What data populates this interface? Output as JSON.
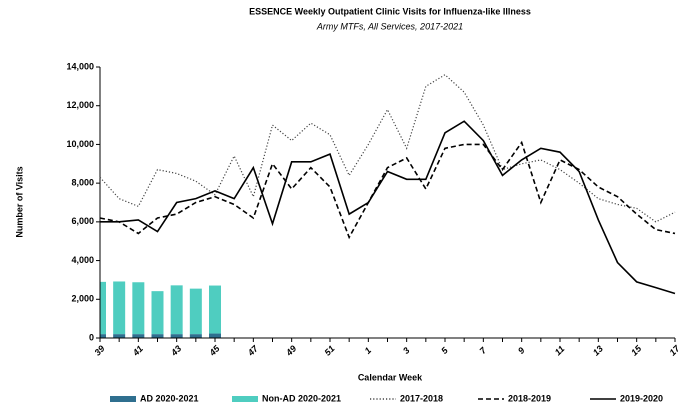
{
  "chart_data": {
    "type": "line",
    "title": "ESSENCE Weekly Outpatient Clinic Visits for Influenza-like Illness",
    "subtitle": "Army MTFs, All Services, 2017-2021",
    "x_label": "Calendar Week",
    "y_label": "Number of Visits",
    "categories": [
      "39",
      null,
      "41",
      null,
      "43",
      null,
      "45",
      null,
      "47",
      null,
      "49",
      null,
      "51",
      null,
      "1",
      null,
      "3",
      null,
      "5",
      null,
      "7",
      null,
      "9",
      null,
      "11",
      null,
      "13",
      null,
      "15",
      null,
      "17"
    ],
    "ylim": [
      0,
      14000
    ],
    "yticks": [
      0,
      {
        "value": 2000,
        "label": "2,000"
      },
      {
        "value": 4000,
        "label": "4,000"
      },
      {
        "value": 6000,
        "label": "6,000"
      },
      {
        "value": 8000,
        "label": "8,000"
      },
      {
        "value": 10000,
        "label": "10,000"
      },
      {
        "value": 12000,
        "label": "12,000"
      },
      {
        "value": 14000,
        "label": "14,000"
      }
    ],
    "legend": "bottom",
    "series": [
      {
        "name": "AD 2020-2021",
        "type": "bar",
        "stack": "2020-2021",
        "color": "#2f6f8f",
        "values": [
          200,
          200,
          200,
          200,
          200,
          200,
          230,
          null,
          null,
          null,
          null,
          null,
          null,
          null,
          null,
          null,
          null,
          null,
          null,
          null,
          null,
          null,
          null,
          null,
          null,
          null,
          null,
          null,
          null,
          null,
          null
        ]
      },
      {
        "name": "Non-AD 2020-2021",
        "type": "bar",
        "stack": "2020-2021",
        "color": "#4fcdc0",
        "values": [
          2700,
          2720,
          2680,
          2220,
          2520,
          2350,
          2480,
          null,
          null,
          null,
          null,
          null,
          null,
          null,
          null,
          null,
          null,
          null,
          null,
          null,
          null,
          null,
          null,
          null,
          null,
          null,
          null,
          null,
          null,
          null,
          null
        ]
      },
      {
        "name": "2017-2018",
        "type": "line",
        "line_style": "dotted",
        "color": "#444444",
        "values": [
          8300,
          7200,
          6800,
          8700,
          8500,
          8100,
          7400,
          9400,
          7300,
          11000,
          10200,
          11100,
          10500,
          8400,
          10000,
          11800,
          9800,
          13000,
          13600,
          12700,
          11000,
          8700,
          9000,
          9200,
          8700,
          8000,
          7200,
          6900,
          6700,
          6000,
          6500
        ]
      },
      {
        "name": "2018-2019",
        "type": "line",
        "line_style": "dashed",
        "color": "#000000",
        "values": [
          6200,
          6000,
          5400,
          6200,
          6400,
          7000,
          7300,
          6900,
          6200,
          9000,
          7700,
          8800,
          7800,
          5200,
          7000,
          8800,
          9300,
          7700,
          9800,
          10000,
          10000,
          8700,
          10100,
          7000,
          9200,
          8700,
          7800,
          7300,
          6400,
          5600,
          5400
        ]
      },
      {
        "name": "2019-2020",
        "type": "line",
        "line_style": "solid",
        "color": "#000000",
        "values": [
          6000,
          6000,
          6100,
          5500,
          7000,
          7200,
          7600,
          7200,
          8800,
          5900,
          9100,
          9100,
          9500,
          6400,
          7000,
          8600,
          8200,
          8200,
          10600,
          11200,
          10200,
          8400,
          9200,
          9800,
          9600,
          8600,
          6100,
          3900,
          2900,
          2600,
          2300
        ]
      }
    ]
  }
}
